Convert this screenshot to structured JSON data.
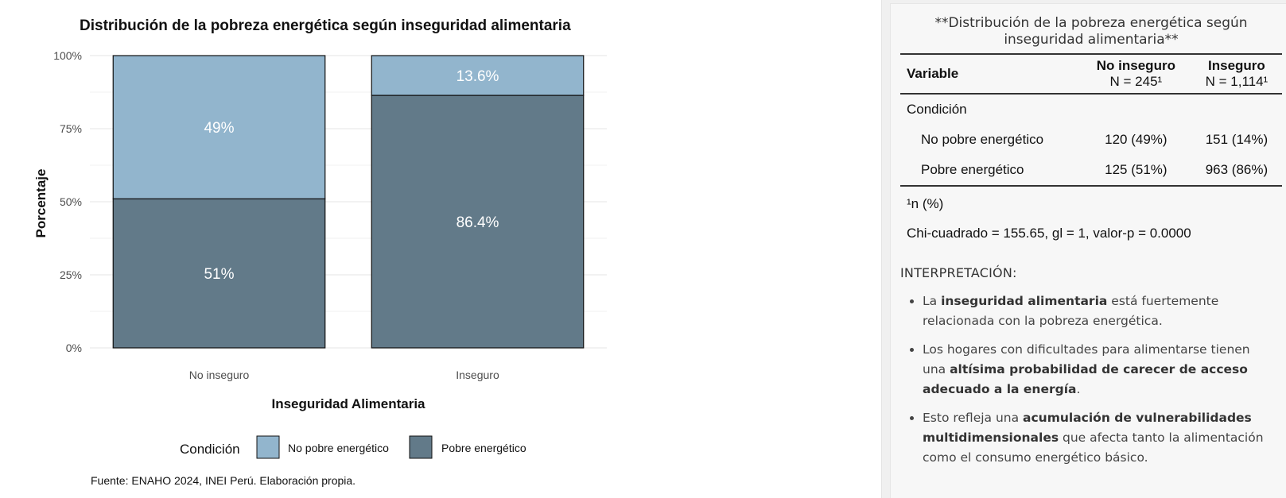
{
  "chart_data": {
    "type": "bar",
    "stacked": true,
    "percent": true,
    "title": "Distribución de la pobreza energética según inseguridad alimentaria",
    "xlabel": "Inseguridad Alimentaria",
    "ylabel": "Porcentaje",
    "categories": [
      "No inseguro",
      "Inseguro"
    ],
    "ylim": [
      0,
      100
    ],
    "y_ticks": [
      "0%",
      "25%",
      "50%",
      "75%",
      "100%"
    ],
    "series": [
      {
        "name": "Pobre energético",
        "values": [
          51,
          86.4
        ],
        "labels": [
          "51%",
          "86.4%"
        ],
        "color": "#627a89"
      },
      {
        "name": "No pobre energético",
        "values": [
          49,
          13.6
        ],
        "labels": [
          "49%",
          "13.6%"
        ],
        "color": "#92b5cd"
      }
    ],
    "legend_title": "Condición",
    "legend_position": "bottom",
    "grid": true,
    "caption": "Fuente: ENAHO 2024, INEI Perú. Elaboración propia."
  },
  "table": {
    "title": "**Distribución de la pobreza energética según inseguridad alimentaria**",
    "col_variable": "Variable",
    "col1_name": "No inseguro",
    "col1_n": "N = 245¹",
    "col2_name": "Inseguro",
    "col2_n": "N = 1,114¹",
    "group_label": "Condición",
    "rows": [
      {
        "label": "No pobre energético",
        "c1": "120 (49%)",
        "c2": "151 (14%)"
      },
      {
        "label": "Pobre energético",
        "c1": "125 (51%)",
        "c2": "963 (86%)"
      }
    ],
    "footnote": "¹n (%)",
    "chi_text": "Chi-cuadrado = 155.65, gl = 1, valor-p = 0.0000"
  },
  "interpretation": {
    "title": "INTERPRETACIÓN:",
    "b1_pre": "La ",
    "b1_bold": "inseguridad alimentaria",
    "b1_post": " está fuertemente relacionada con la pobreza energética.",
    "b2_pre": "Los hogares con dificultades para alimentarse tienen una ",
    "b2_bold": "altísima probabilidad de carecer de acceso adecuado a la energía",
    "b2_post": ".",
    "b3_pre": "Esto refleja una ",
    "b3_bold": "acumulación de vulnerabilidades multidimensionales",
    "b3_post": " que afecta tanto la alimentación como el consumo energético básico."
  }
}
